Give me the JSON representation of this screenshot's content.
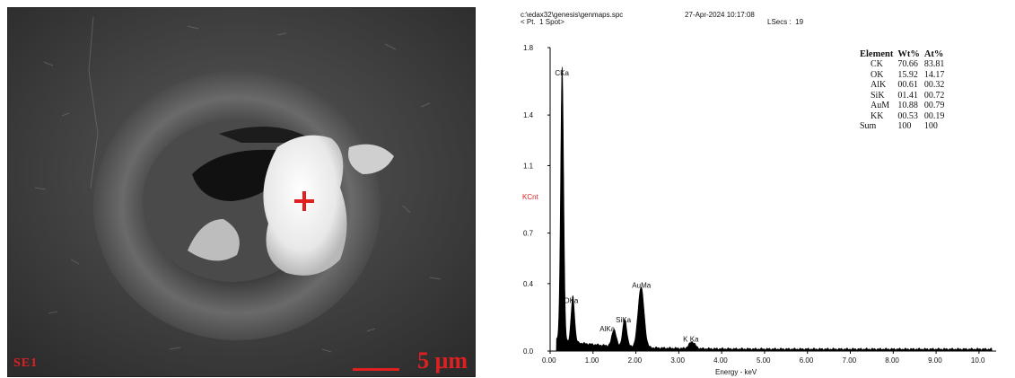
{
  "sem": {
    "left_label": "SE1",
    "scale_text": "5 μm"
  },
  "eds": {
    "header": {
      "path": "c:\\edax32\\genesis\\genmaps.spc",
      "date": "27-Apr-2024 10:17:08",
      "spot": "< Pt.  1 Spot>",
      "lsecs": "LSecs :  19"
    },
    "table": {
      "headers": [
        "Element",
        "Wt%",
        "At%"
      ],
      "rows": [
        [
          "CK",
          "70.66",
          "83.81"
        ],
        [
          "OK",
          "15.92",
          "14.17"
        ],
        [
          "AlK",
          "00.61",
          "00.32"
        ],
        [
          "SiK",
          "01.41",
          "00.72"
        ],
        [
          "AuM",
          "10.88",
          "00.79"
        ],
        [
          "KK",
          "00.53",
          "00.19"
        ],
        [
          "Sum",
          "100",
          "100"
        ]
      ]
    }
  },
  "chart_data": {
    "type": "line",
    "title": "",
    "xlabel": "Energy - keV",
    "ylabel": "KCnt",
    "xlim": [
      0,
      10.4
    ],
    "ylim": [
      0,
      1.8
    ],
    "x_ticks": [
      "0.00",
      "1.00",
      "2.00",
      "3.00",
      "4.00",
      "5.00",
      "6.00",
      "7.00",
      "8.00",
      "9.00",
      "10.0"
    ],
    "y_ticks": [
      "0.0",
      "0.4",
      "0.7",
      "1.1",
      "1.4",
      "1.8"
    ],
    "peaks": [
      {
        "label": "CKa",
        "energy": 0.28,
        "kcnt": 1.62
      },
      {
        "label": "OKa",
        "energy": 0.53,
        "kcnt": 0.27
      },
      {
        "label": "AlKa",
        "energy": 1.49,
        "kcnt": 0.1
      },
      {
        "label": "SiKa",
        "energy": 1.74,
        "kcnt": 0.16
      },
      {
        "label": "AuMa",
        "energy": 2.12,
        "kcnt": 0.36
      },
      {
        "label": "K Ka",
        "energy": 3.31,
        "kcnt": 0.04
      }
    ],
    "colors": {
      "spectrum": "#000000",
      "ylabel": "#e02020"
    }
  }
}
